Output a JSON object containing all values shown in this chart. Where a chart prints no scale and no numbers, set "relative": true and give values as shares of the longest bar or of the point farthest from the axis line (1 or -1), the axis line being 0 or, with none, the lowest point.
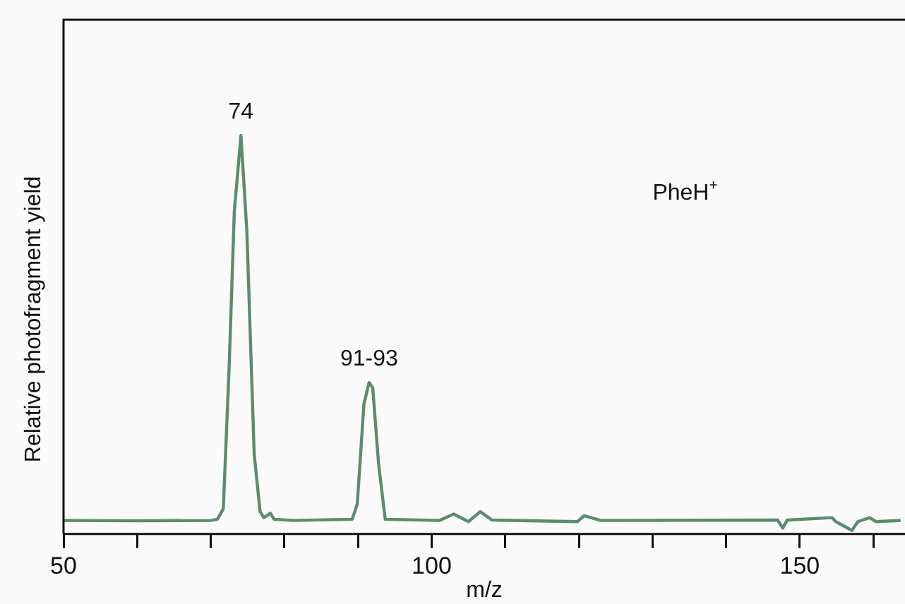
{
  "chart_data": {
    "type": "line",
    "relative": true,
    "xlabel": "m/z",
    "ylabel": "Relative photofragment yield",
    "xlim": [
      50,
      164.3
    ],
    "xticks": [
      50,
      {
        "value": 60,
        "label": null
      },
      {
        "value": 70,
        "label": null
      },
      {
        "value": 80,
        "label": null
      },
      {
        "value": 90,
        "label": null
      },
      100,
      {
        "value": 110,
        "label": null
      },
      {
        "value": 120,
        "label": null
      },
      {
        "value": 130,
        "label": null
      },
      {
        "value": 140,
        "label": null
      },
      150,
      {
        "value": 160,
        "label": null
      }
    ],
    "annotations": [
      {
        "text": "74",
        "x": 74.1,
        "y": 1.0
      },
      {
        "text": "91-93",
        "x": 91.5,
        "y": 0.38
      },
      "PheH$^{+}$"
    ],
    "tick_labels": "x",
    "grid": false,
    "legend": false,
    "marker": "none",
    "line_style": "solid",
    "series": [
      {
        "color": "#5b8c6f",
        "x": [
          50,
          60,
          70,
          70.9,
          71.7,
          72.5,
          73.2,
          74.1,
          74.9,
          75.9,
          76.7,
          77.2,
          78.1,
          78.6,
          81.2,
          89.2,
          89.9,
          90.8,
          91.5,
          92.0,
          92.8,
          93.7,
          101.1,
          103.0,
          105.0,
          106.6,
          108.2,
          119.8,
          120.7,
          123.0,
          147.0,
          147.7,
          148.3,
          154.4,
          154.9,
          157.1,
          157.9,
          159.5,
          160.4,
          163.7
        ],
        "values": [
          0.034,
          0.033,
          0.034,
          0.037,
          0.063,
          0.42,
          0.81,
          1.0,
          0.76,
          0.2,
          0.056,
          0.041,
          0.052,
          0.037,
          0.034,
          0.037,
          0.075,
          0.325,
          0.38,
          0.367,
          0.175,
          0.037,
          0.034,
          0.05,
          0.031,
          0.056,
          0.035,
          0.031,
          0.046,
          0.034,
          0.035,
          0.015,
          0.035,
          0.041,
          0.031,
          0.009,
          0.031,
          0.041,
          0.031,
          0.034
        ]
      }
    ]
  }
}
